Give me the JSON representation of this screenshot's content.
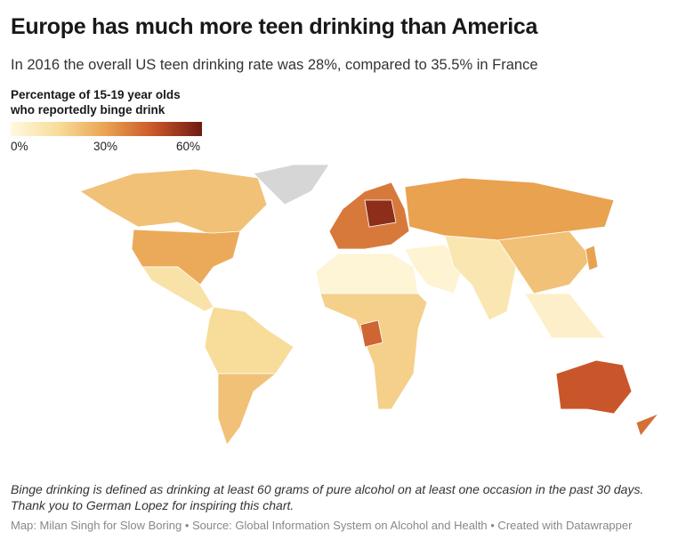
{
  "title": "Europe has much more teen drinking than America",
  "subtitle": "In 2016 the overall US teen drinking rate was 28%, compared to 35.5% in France",
  "legend": {
    "title_line1": "Percentage of 15-19 year olds",
    "title_line2": "who reportedly binge drink",
    "ticks": [
      "0%",
      "30%",
      "60%"
    ],
    "range": [
      0,
      60
    ]
  },
  "colors": {
    "no_data": "#d6d6d6",
    "scale": [
      "#fff9e0",
      "#f8dc9a",
      "#e9a250",
      "#c9562a",
      "#6e1a10"
    ]
  },
  "region_values": [
    22,
    28,
    null,
    12,
    15,
    22,
    38,
    30,
    2,
    18,
    3,
    10,
    22,
    30,
    5,
    45,
    40,
    55,
    42
  ],
  "note_line1": "Binge drinking is defined as drinking at least 60 grams of pure alcohol on at least one occasion in the past 30 days.",
  "note_line2": "Thank you to German Lopez for inspiring this chart.",
  "footer": "Map: Milan Singh for Slow Boring • Source: Global Information System on Alcohol and Health • Created with Datawrapper"
}
